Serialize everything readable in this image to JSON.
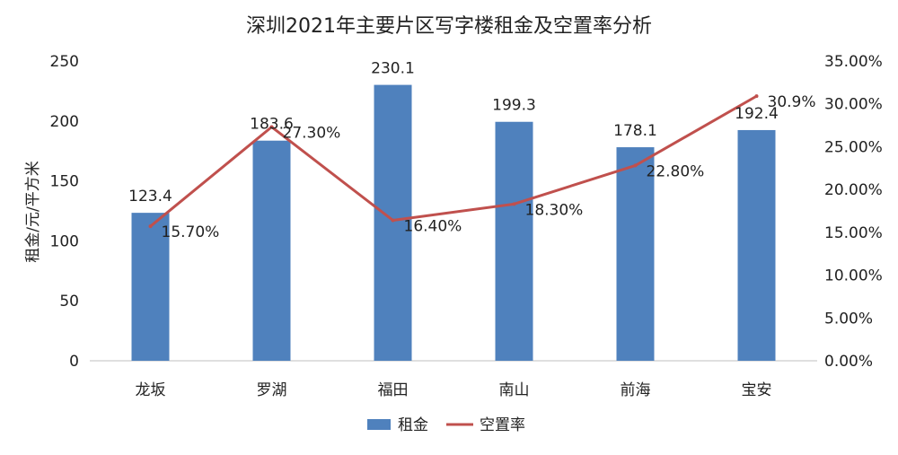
{
  "chart_data": {
    "type": "bar",
    "title": "深圳2021年主要片区写字楼租金及空置率分析",
    "categories": [
      "龙坂",
      "罗湖",
      "福田",
      "南山",
      "前海",
      "宝安"
    ],
    "y_left": {
      "label": "租金/元/平方米",
      "ylim": [
        0,
        250
      ],
      "ticks": [
        "0",
        "50",
        "100",
        "150",
        "200",
        "250"
      ]
    },
    "y_right": {
      "ylim": [
        0,
        35
      ],
      "ticks": [
        "0.00%",
        "5.00%",
        "10.00%",
        "15.00%",
        "20.00%",
        "25.00%",
        "30.00%",
        "35.00%"
      ]
    },
    "series": [
      {
        "name": "租金",
        "type": "bar",
        "axis": "left",
        "color": "#4f81bd",
        "values": [
          123.4,
          183.6,
          230.1,
          199.3,
          178.1,
          192.4
        ],
        "labels": [
          "123.4",
          "183.6",
          "230.1",
          "199.3",
          "178.1",
          "192.4"
        ]
      },
      {
        "name": "空置率",
        "type": "line",
        "axis": "right",
        "color": "#c0504d",
        "values": [
          15.7,
          27.3,
          16.4,
          18.3,
          22.8,
          30.9
        ],
        "labels": [
          "15.70%",
          "27.30%",
          "16.40%",
          "18.30%",
          "22.80%",
          "30.9%"
        ]
      }
    ],
    "grid": false,
    "legend_position": "bottom"
  }
}
